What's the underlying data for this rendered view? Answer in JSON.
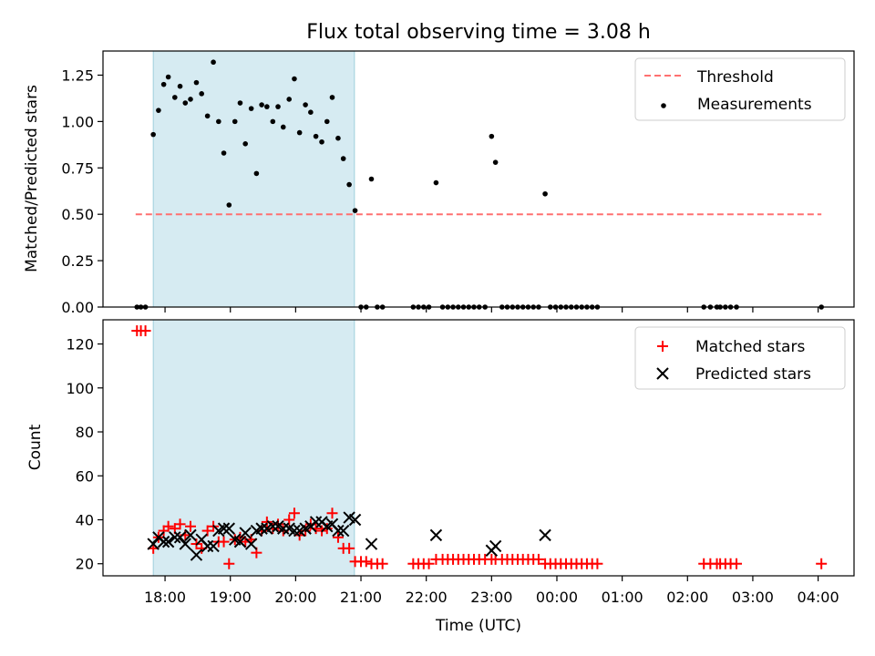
{
  "chart_data": [
    {
      "type": "scatter",
      "title": "Flux total observing time = 3.08 h",
      "ylabel": "Matched/Predicted stars",
      "xlabel": "",
      "ylim": [
        0,
        1.38
      ],
      "xlim_hours": [
        17.05,
        28.55
      ],
      "x_ticks_hours": [
        18,
        19,
        20,
        21,
        22,
        23,
        24,
        25,
        26,
        27,
        28
      ],
      "y_ticks": [
        0.0,
        0.25,
        0.5,
        0.75,
        1.0,
        1.25
      ],
      "y_tick_labels": [
        "0.00",
        "0.25",
        "0.50",
        "0.75",
        "1.00",
        "1.25"
      ],
      "observing_window_hours": [
        17.82,
        20.9
      ],
      "threshold": {
        "name": "Threshold",
        "value": 0.5,
        "x_range_hours": [
          17.55,
          28.05
        ],
        "color": "#ff7070"
      },
      "legend": {
        "placement": "upper-right",
        "entries": [
          "Threshold",
          "Measurements"
        ]
      },
      "series": [
        {
          "name": "Measurements",
          "color": "#000000",
          "points": [
            [
              17.57,
              0
            ],
            [
              17.63,
              0
            ],
            [
              17.7,
              0
            ],
            [
              17.82,
              0.93
            ],
            [
              17.9,
              1.06
            ],
            [
              17.98,
              1.2
            ],
            [
              18.05,
              1.24
            ],
            [
              18.15,
              1.13
            ],
            [
              18.23,
              1.19
            ],
            [
              18.31,
              1.1
            ],
            [
              18.39,
              1.12
            ],
            [
              18.48,
              1.21
            ],
            [
              18.56,
              1.15
            ],
            [
              18.65,
              1.03
            ],
            [
              18.74,
              1.32
            ],
            [
              18.82,
              1.0
            ],
            [
              18.9,
              0.83
            ],
            [
              18.98,
              0.55
            ],
            [
              19.07,
              1.0
            ],
            [
              19.15,
              1.1
            ],
            [
              19.23,
              0.88
            ],
            [
              19.32,
              1.07
            ],
            [
              19.4,
              0.72
            ],
            [
              19.48,
              1.09
            ],
            [
              19.56,
              1.08
            ],
            [
              19.65,
              1.0
            ],
            [
              19.73,
              1.08
            ],
            [
              19.81,
              0.97
            ],
            [
              19.9,
              1.12
            ],
            [
              19.98,
              1.23
            ],
            [
              20.06,
              0.94
            ],
            [
              20.15,
              1.09
            ],
            [
              20.23,
              1.05
            ],
            [
              20.31,
              0.92
            ],
            [
              20.4,
              0.89
            ],
            [
              20.48,
              1.0
            ],
            [
              20.56,
              1.13
            ],
            [
              20.65,
              0.91
            ],
            [
              20.73,
              0.8
            ],
            [
              20.82,
              0.66
            ],
            [
              20.91,
              0.52
            ],
            [
              21.0,
              0
            ],
            [
              21.08,
              0
            ],
            [
              21.16,
              0.69
            ],
            [
              21.25,
              0
            ],
            [
              21.33,
              0
            ],
            [
              21.8,
              0
            ],
            [
              21.88,
              0
            ],
            [
              21.96,
              0
            ],
            [
              22.04,
              0
            ],
            [
              22.15,
              0.67
            ],
            [
              22.25,
              0
            ],
            [
              22.33,
              0
            ],
            [
              22.41,
              0
            ],
            [
              22.49,
              0
            ],
            [
              22.57,
              0
            ],
            [
              22.65,
              0
            ],
            [
              22.73,
              0
            ],
            [
              22.81,
              0
            ],
            [
              22.9,
              0
            ],
            [
              23.0,
              0.92
            ],
            [
              23.06,
              0.78
            ],
            [
              23.16,
              0
            ],
            [
              23.24,
              0
            ],
            [
              23.32,
              0
            ],
            [
              23.4,
              0
            ],
            [
              23.48,
              0
            ],
            [
              23.56,
              0
            ],
            [
              23.64,
              0
            ],
            [
              23.72,
              0
            ],
            [
              23.82,
              0.61
            ],
            [
              23.9,
              0
            ],
            [
              23.98,
              0
            ],
            [
              24.06,
              0
            ],
            [
              24.14,
              0
            ],
            [
              24.22,
              0
            ],
            [
              24.3,
              0
            ],
            [
              24.38,
              0
            ],
            [
              24.46,
              0
            ],
            [
              24.54,
              0
            ],
            [
              24.62,
              0
            ],
            [
              26.25,
              0
            ],
            [
              26.35,
              0
            ],
            [
              26.45,
              0
            ],
            [
              26.5,
              0
            ],
            [
              26.58,
              0
            ],
            [
              26.66,
              0
            ],
            [
              26.75,
              0
            ],
            [
              28.05,
              0
            ]
          ]
        }
      ]
    },
    {
      "type": "scatter",
      "title": "",
      "ylabel": "Count",
      "xlabel": "Time (UTC)",
      "ylim": [
        14.5,
        131
      ],
      "xlim_hours": [
        17.05,
        28.55
      ],
      "x_ticks_hours": [
        18,
        19,
        20,
        21,
        22,
        23,
        24,
        25,
        26,
        27,
        28
      ],
      "x_tick_labels": [
        "18:00",
        "19:00",
        "20:00",
        "21:00",
        "22:00",
        "23:00",
        "00:00",
        "01:00",
        "02:00",
        "03:00",
        "04:00"
      ],
      "y_ticks": [
        20,
        40,
        60,
        80,
        100,
        120
      ],
      "y_tick_labels": [
        "20",
        "40",
        "60",
        "80",
        "100",
        "120"
      ],
      "observing_window_hours": [
        17.82,
        20.9
      ],
      "legend": {
        "placement": "upper-right",
        "entries": [
          "Matched stars",
          "Predicted stars"
        ]
      },
      "series": [
        {
          "name": "Matched stars",
          "color": "#ff0000",
          "marker": "plus",
          "points": [
            [
              17.57,
              126
            ],
            [
              17.63,
              126
            ],
            [
              17.7,
              126
            ],
            [
              17.82,
              27
            ],
            [
              17.9,
              32
            ],
            [
              17.98,
              35
            ],
            [
              18.05,
              37
            ],
            [
              18.15,
              36
            ],
            [
              18.23,
              38
            ],
            [
              18.31,
              33
            ],
            [
              18.39,
              37
            ],
            [
              18.48,
              29
            ],
            [
              18.56,
              27
            ],
            [
              18.65,
              35
            ],
            [
              18.74,
              37
            ],
            [
              18.82,
              30
            ],
            [
              18.9,
              30
            ],
            [
              18.98,
              20
            ],
            [
              19.07,
              31
            ],
            [
              19.15,
              32
            ],
            [
              19.23,
              30
            ],
            [
              19.32,
              31
            ],
            [
              19.4,
              25
            ],
            [
              19.48,
              35
            ],
            [
              19.56,
              39
            ],
            [
              19.65,
              36
            ],
            [
              19.73,
              38
            ],
            [
              19.81,
              35
            ],
            [
              19.9,
              40
            ],
            [
              19.98,
              43
            ],
            [
              20.06,
              33
            ],
            [
              20.15,
              35
            ],
            [
              20.23,
              38
            ],
            [
              20.31,
              36
            ],
            [
              20.4,
              35
            ],
            [
              20.48,
              36
            ],
            [
              20.56,
              43
            ],
            [
              20.65,
              32
            ],
            [
              20.73,
              27
            ],
            [
              20.82,
              27
            ],
            [
              20.91,
              21
            ],
            [
              21.0,
              21
            ],
            [
              21.08,
              21
            ],
            [
              21.16,
              20
            ],
            [
              21.25,
              20
            ],
            [
              21.33,
              20
            ],
            [
              21.8,
              20
            ],
            [
              21.88,
              20
            ],
            [
              21.96,
              20
            ],
            [
              22.04,
              20
            ],
            [
              22.15,
              22
            ],
            [
              22.25,
              22
            ],
            [
              22.33,
              22
            ],
            [
              22.41,
              22
            ],
            [
              22.49,
              22
            ],
            [
              22.57,
              22
            ],
            [
              22.65,
              22
            ],
            [
              22.73,
              22
            ],
            [
              22.81,
              22
            ],
            [
              22.9,
              22
            ],
            [
              23.0,
              22
            ],
            [
              23.06,
              22
            ],
            [
              23.16,
              22
            ],
            [
              23.24,
              22
            ],
            [
              23.32,
              22
            ],
            [
              23.4,
              22
            ],
            [
              23.48,
              22
            ],
            [
              23.56,
              22
            ],
            [
              23.64,
              22
            ],
            [
              23.72,
              22
            ],
            [
              23.82,
              20
            ],
            [
              23.9,
              20
            ],
            [
              23.98,
              20
            ],
            [
              24.06,
              20
            ],
            [
              24.14,
              20
            ],
            [
              24.22,
              20
            ],
            [
              24.3,
              20
            ],
            [
              24.38,
              20
            ],
            [
              24.46,
              20
            ],
            [
              24.54,
              20
            ],
            [
              24.62,
              20
            ],
            [
              26.25,
              20
            ],
            [
              26.35,
              20
            ],
            [
              26.45,
              20
            ],
            [
              26.5,
              20
            ],
            [
              26.58,
              20
            ],
            [
              26.66,
              20
            ],
            [
              26.75,
              20
            ],
            [
              28.05,
              20
            ]
          ]
        },
        {
          "name": "Predicted stars",
          "color": "#000000",
          "marker": "x",
          "points": [
            [
              17.82,
              29
            ],
            [
              17.9,
              32
            ],
            [
              17.98,
              30
            ],
            [
              18.05,
              30
            ],
            [
              18.15,
              32
            ],
            [
              18.23,
              32
            ],
            [
              18.31,
              29
            ],
            [
              18.39,
              33
            ],
            [
              18.48,
              24
            ],
            [
              18.56,
              31
            ],
            [
              18.65,
              28
            ],
            [
              18.74,
              28
            ],
            [
              18.82,
              35
            ],
            [
              18.9,
              36
            ],
            [
              18.98,
              36
            ],
            [
              19.07,
              31
            ],
            [
              19.15,
              30
            ],
            [
              19.23,
              34
            ],
            [
              19.32,
              29
            ],
            [
              19.4,
              35
            ],
            [
              19.48,
              36
            ],
            [
              19.56,
              36
            ],
            [
              19.65,
              37
            ],
            [
              19.73,
              37
            ],
            [
              19.81,
              36
            ],
            [
              19.9,
              36
            ],
            [
              19.98,
              35
            ],
            [
              20.06,
              35
            ],
            [
              20.15,
              36
            ],
            [
              20.23,
              37
            ],
            [
              20.31,
              39
            ],
            [
              20.4,
              39
            ],
            [
              20.48,
              37
            ],
            [
              20.56,
              38
            ],
            [
              20.65,
              35
            ],
            [
              20.73,
              35
            ],
            [
              20.82,
              41
            ],
            [
              20.91,
              40
            ],
            [
              21.16,
              29
            ],
            [
              22.15,
              33
            ],
            [
              23.0,
              26
            ],
            [
              23.06,
              28
            ],
            [
              23.82,
              33
            ]
          ]
        }
      ]
    }
  ]
}
